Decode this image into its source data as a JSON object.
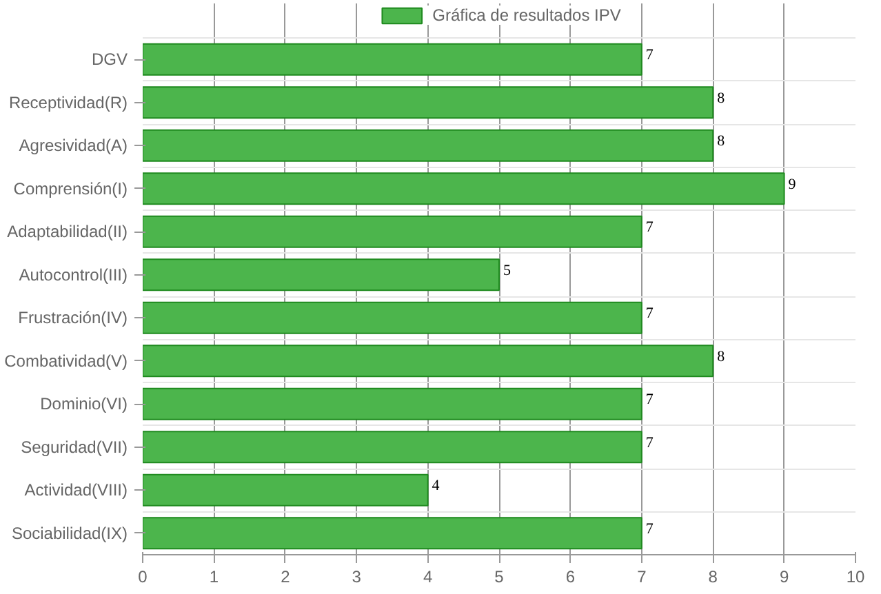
{
  "chart_data": {
    "type": "bar",
    "orientation": "horizontal",
    "categories": [
      "DGV",
      "Receptividad(R)",
      "Agresividad(A)",
      "Comprensión(I)",
      "Adaptabilidad(II)",
      "Autocontrol(III)",
      "Frustración(IV)",
      "Combatividad(V)",
      "Dominio(VI)",
      "Seguridad(VII)",
      "Actividad(VIII)",
      "Sociabilidad(IX)"
    ],
    "series": [
      {
        "name": "Gráfica de resultados IPV",
        "color": "#4cb54c",
        "values": [
          7,
          8,
          8,
          9,
          7,
          5,
          7,
          8,
          7,
          7,
          4,
          7
        ]
      }
    ],
    "xlim": [
      0,
      10
    ],
    "xticks": [
      0,
      1,
      2,
      3,
      4,
      5,
      6,
      7,
      8,
      9,
      10
    ],
    "grid": true,
    "legend": "top",
    "data_labels": true
  }
}
